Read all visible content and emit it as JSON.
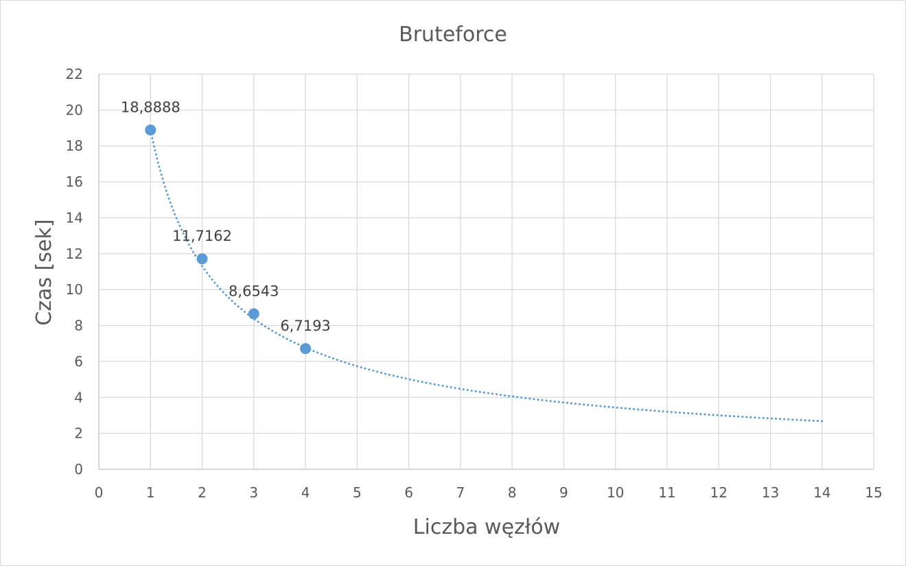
{
  "chart_data": {
    "type": "scatter",
    "title": "Bruteforce",
    "xlabel": "Liczba węzłów",
    "ylabel": "Czas [sek]",
    "xlim": [
      0,
      15
    ],
    "ylim": [
      0,
      22
    ],
    "x_ticks": [
      0,
      1,
      2,
      3,
      4,
      5,
      6,
      7,
      8,
      9,
      10,
      11,
      12,
      13,
      14,
      15
    ],
    "y_ticks": [
      0,
      2,
      4,
      6,
      8,
      10,
      12,
      14,
      16,
      18,
      20,
      22
    ],
    "grid": true,
    "series": [
      {
        "name": "Czas",
        "x": [
          1,
          2,
          3,
          4
        ],
        "y": [
          18.8888,
          11.7162,
          8.6543,
          6.7193
        ],
        "labels": [
          "18,8888",
          "11,7162",
          "8,6543",
          "6,7193"
        ],
        "color": "#5b9bd5"
      }
    ],
    "trendline": {
      "type": "power",
      "style": "dotted",
      "coefficient": 18.89,
      "exponent": -0.74,
      "x_range": [
        1,
        14
      ],
      "color": "#5b9bd5"
    }
  }
}
